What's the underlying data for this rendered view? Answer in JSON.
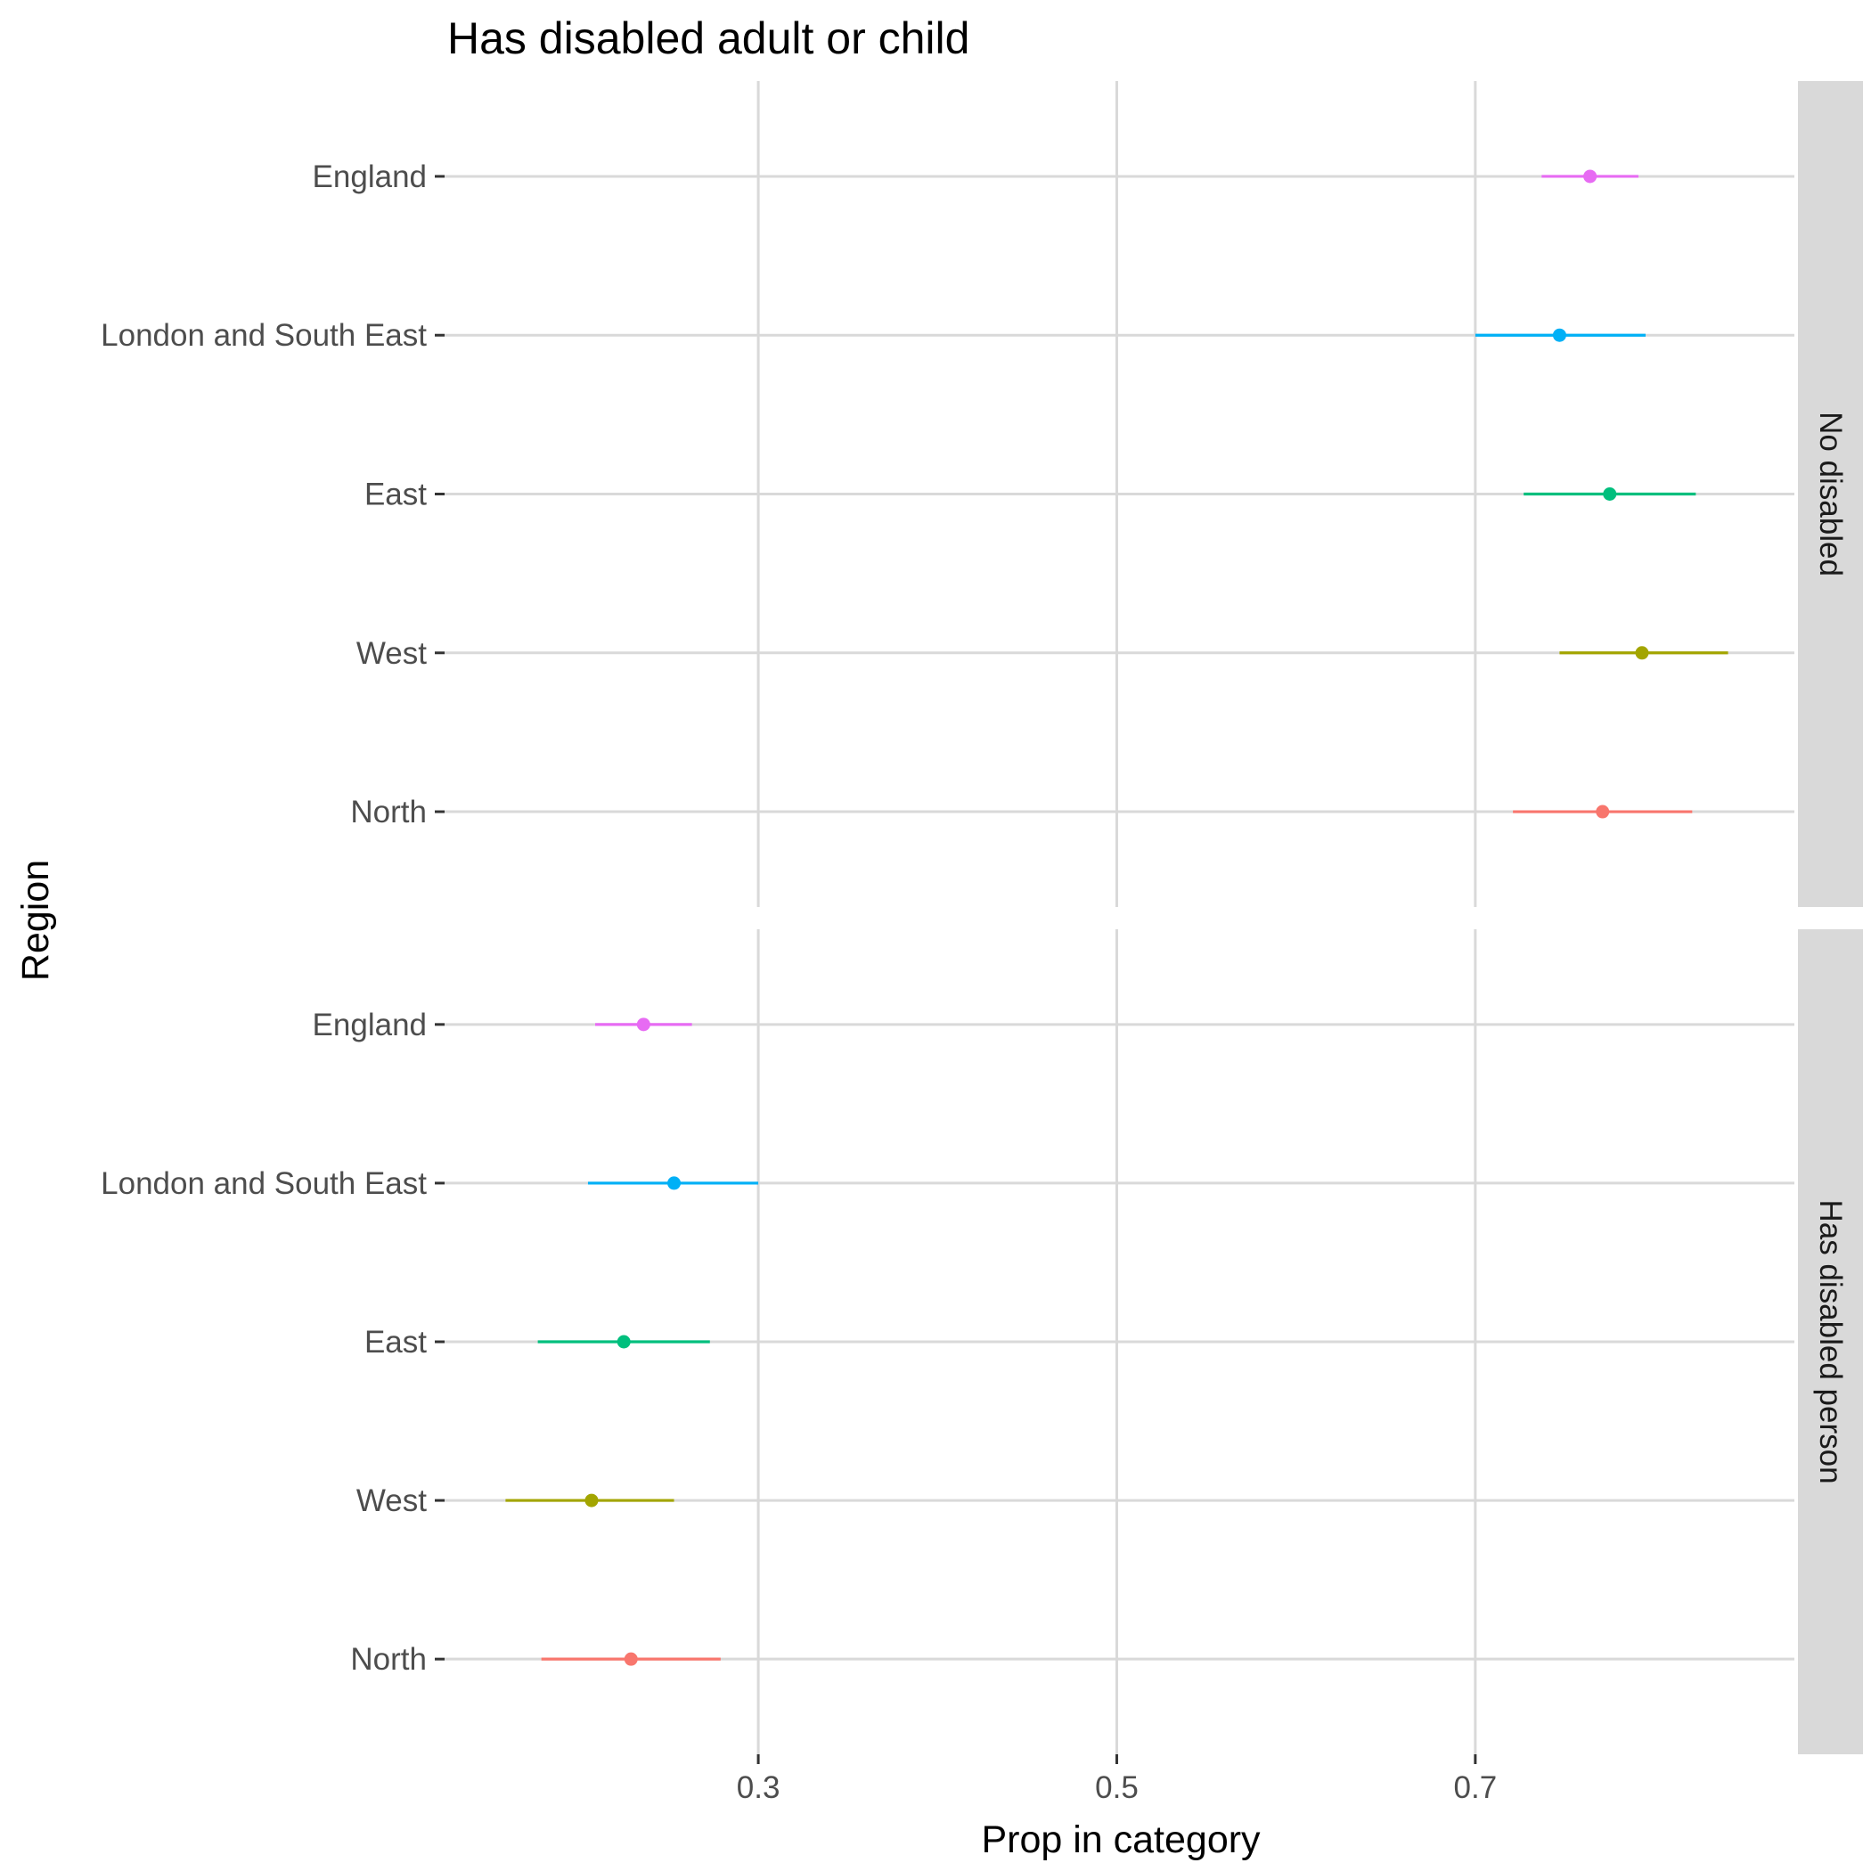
{
  "chart_data": {
    "type": "dot-errorbar",
    "title": "Has disabled adult or child",
    "xlabel": "Prop in category",
    "ylabel": "Region",
    "xlim": [
      0.125,
      0.878
    ],
    "x_ticks": [
      0.3,
      0.5,
      0.7
    ],
    "x_tick_labels": [
      "0.3",
      "0.5",
      "0.7"
    ],
    "categories": [
      "England",
      "London and South East",
      "East",
      "West",
      "North"
    ],
    "grid": true,
    "legend": "none",
    "series_colors": {
      "England": "#E76BF3",
      "London and South East": "#00B0F6",
      "East": "#00BF7D",
      "West": "#A3A500",
      "North": "#F8766D"
    },
    "panels": [
      {
        "strip_label": "No disabled",
        "points": [
          {
            "region": "England",
            "estimate": 0.764,
            "lower": 0.737,
            "upper": 0.791
          },
          {
            "region": "London and South East",
            "estimate": 0.747,
            "lower": 0.7,
            "upper": 0.795
          },
          {
            "region": "East",
            "estimate": 0.775,
            "lower": 0.727,
            "upper": 0.823
          },
          {
            "region": "West",
            "estimate": 0.793,
            "lower": 0.747,
            "upper": 0.841
          },
          {
            "region": "North",
            "estimate": 0.771,
            "lower": 0.721,
            "upper": 0.821
          }
        ]
      },
      {
        "strip_label": "Has disabled person",
        "points": [
          {
            "region": "England",
            "estimate": 0.236,
            "lower": 0.209,
            "upper": 0.263
          },
          {
            "region": "London and South East",
            "estimate": 0.253,
            "lower": 0.205,
            "upper": 0.3
          },
          {
            "region": "East",
            "estimate": 0.225,
            "lower": 0.177,
            "upper": 0.273
          },
          {
            "region": "West",
            "estimate": 0.207,
            "lower": 0.159,
            "upper": 0.253
          },
          {
            "region": "North",
            "estimate": 0.229,
            "lower": 0.179,
            "upper": 0.279
          }
        ]
      }
    ]
  }
}
